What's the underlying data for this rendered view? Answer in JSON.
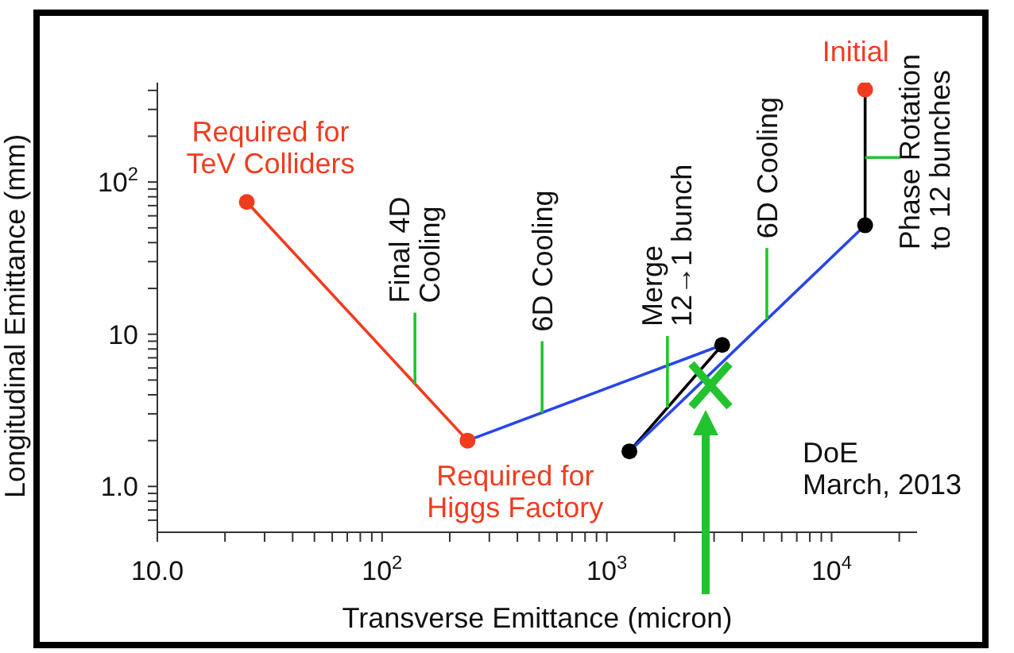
{
  "chart_data": {
    "type": "line",
    "xlabel": "Transverse Emittance (micron)",
    "ylabel": "Longitudinal Emittance (mm)",
    "log": "xy",
    "grid": false,
    "legend": false,
    "xlim": [
      10,
      24000
    ],
    "ylim": [
      0.5,
      450
    ],
    "xticks": [
      {
        "value": 10,
        "label": "10.0"
      },
      {
        "value": 20,
        "label": null
      },
      {
        "value": 30,
        "label": null
      },
      {
        "value": 40,
        "label": null
      },
      {
        "value": 50,
        "label": null
      },
      {
        "value": 60,
        "label": null
      },
      {
        "value": 70,
        "label": null
      },
      {
        "value": 80,
        "label": null
      },
      {
        "value": 90,
        "label": null
      },
      {
        "value": 100,
        "label": "10$^{2}$"
      },
      {
        "value": 200,
        "label": null
      },
      {
        "value": 300,
        "label": null
      },
      {
        "value": 400,
        "label": null
      },
      {
        "value": 500,
        "label": null
      },
      {
        "value": 600,
        "label": null
      },
      {
        "value": 700,
        "label": null
      },
      {
        "value": 800,
        "label": null
      },
      {
        "value": 900,
        "label": null
      },
      {
        "value": 1000,
        "label": "10$^{3}$"
      },
      {
        "value": 2000,
        "label": null
      },
      {
        "value": 3000,
        "label": null
      },
      {
        "value": 4000,
        "label": null
      },
      {
        "value": 5000,
        "label": null
      },
      {
        "value": 6000,
        "label": null
      },
      {
        "value": 7000,
        "label": null
      },
      {
        "value": 8000,
        "label": null
      },
      {
        "value": 9000,
        "label": null
      },
      {
        "value": 10000,
        "label": "10$^{4}$"
      },
      {
        "value": 20000,
        "label": null
      }
    ],
    "yticks": [
      {
        "value": 0.6,
        "label": null
      },
      {
        "value": 0.7,
        "label": null
      },
      {
        "value": 0.8,
        "label": null
      },
      {
        "value": 0.9,
        "label": null
      },
      {
        "value": 1,
        "label": "1.0"
      },
      {
        "value": 2,
        "label": null
      },
      {
        "value": 3,
        "label": null
      },
      {
        "value": 4,
        "label": null
      },
      {
        "value": 5,
        "label": null
      },
      {
        "value": 6,
        "label": null
      },
      {
        "value": 7,
        "label": null
      },
      {
        "value": 8,
        "label": null
      },
      {
        "value": 9,
        "label": null
      },
      {
        "value": 10,
        "label": "10"
      },
      {
        "value": 20,
        "label": null
      },
      {
        "value": 30,
        "label": null
      },
      {
        "value": 40,
        "label": null
      },
      {
        "value": 50,
        "label": null
      },
      {
        "value": 60,
        "label": null
      },
      {
        "value": 70,
        "label": null
      },
      {
        "value": 80,
        "label": null
      },
      {
        "value": 90,
        "label": null
      },
      {
        "value": 100,
        "label": "10$^{2}$"
      },
      {
        "value": 200,
        "label": null
      },
      {
        "value": 300,
        "label": null
      },
      {
        "value": 400,
        "label": null
      }
    ],
    "series": [
      {
        "color": "#f03c1e",
        "x": [
          25,
          240
        ],
        "values": [
          74,
          2.0
        ]
      },
      {
        "color": "#2746e8",
        "x": [
          240,
          3260
        ],
        "values": [
          2.0,
          8.5
        ]
      },
      {
        "color": "#000000",
        "x": [
          3260,
          1260
        ],
        "values": [
          8.5,
          1.7
        ]
      },
      {
        "color": "#2746e8",
        "x": [
          1260,
          14100
        ],
        "values": [
          1.7,
          52
        ]
      },
      {
        "color": "#000000",
        "x": [
          14100,
          14100
        ],
        "values": [
          52,
          405
        ]
      },
      {
        "type": "scatter",
        "color": "#000000",
        "x": [
          14100,
          1260,
          3260
        ],
        "values": [
          52,
          1.7,
          8.5
        ]
      },
      {
        "type": "scatter",
        "color": "#f03c1e",
        "x": [
          25,
          240,
          14100
        ],
        "values": [
          74,
          2.0,
          405
        ]
      }
    ],
    "annotations": [
      {
        "text": "Required for\nTeV Colliders",
        "x": 25,
        "y": 74
      },
      {
        "text": "Required for\nHiggs Factory",
        "x": 240,
        "y": 2.0
      },
      {
        "text": "Initial",
        "x": 14100,
        "y": 405
      },
      {
        "text": "Final 4D\nCooling",
        "x": 140,
        "y": 4.7
      },
      {
        "text": "6D Cooling",
        "x": 515,
        "y": 3.05
      },
      {
        "text": "Merge\n12→1 bunch",
        "x": 1860,
        "y": 3.3
      },
      {
        "text": "6D Cooling",
        "x": 5150,
        "y": 12.5
      },
      {
        "text": "Phase Rotation\nto 12 bunches",
        "x": 14100,
        "y": 145
      },
      "DoE\nMarch, 2013"
    ]
  }
}
